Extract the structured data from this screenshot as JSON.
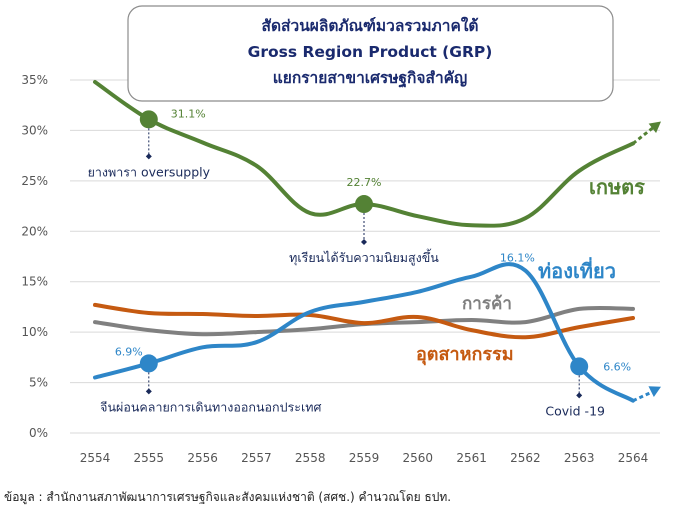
{
  "chart_data": {
    "type": "line",
    "title_lines": [
      "สัดส่วนผลิตภัณฑ์มวลรวมภาคใต้",
      "Gross Region Product (GRP)",
      "แยกรายสาขาเศรษฐกิจสำคัญ"
    ],
    "x": [
      "2554",
      "2555",
      "2556",
      "2557",
      "2558",
      "2559",
      "2560",
      "2561",
      "2562",
      "2563",
      "2564"
    ],
    "y_ticks": [
      "0%",
      "5%",
      "10%",
      "15%",
      "20%",
      "25%",
      "30%",
      "35%"
    ],
    "ylim": [
      0,
      35
    ],
    "grid": "horizontal",
    "series": [
      {
        "name": "เกษตร",
        "color": "#548235",
        "values": [
          34.8,
          31.1,
          28.8,
          26.5,
          21.8,
          22.7,
          21.5,
          20.6,
          21.3,
          26.0,
          28.7
        ],
        "trend": "up"
      },
      {
        "name": "ท่องเที่ยว",
        "color": "#2e86c8",
        "values": [
          5.5,
          6.9,
          8.5,
          9.0,
          12.0,
          13.0,
          14.0,
          15.5,
          16.1,
          6.6,
          3.2
        ],
        "trend": "up"
      },
      {
        "name": "การค้า",
        "color": "#808080",
        "values": [
          11.0,
          10.2,
          9.8,
          10.0,
          10.3,
          10.8,
          11.0,
          11.2,
          11.0,
          12.3,
          12.3
        ]
      },
      {
        "name": "อุตสาหกรรม",
        "color": "#c55a11",
        "values": [
          12.7,
          11.9,
          11.8,
          11.6,
          11.7,
          10.9,
          11.5,
          10.2,
          9.5,
          10.5,
          11.4
        ]
      }
    ],
    "annotations": [
      {
        "text": "ยางพารา oversupply",
        "series": 0,
        "x_index": 1,
        "label": "31.1%"
      },
      {
        "text": "ทุเรียนได้รับความนิยมสูงขึ้น",
        "series": 0,
        "x_index": 5,
        "label": "22.7%"
      },
      {
        "text": "จีนผ่อนคลายการเดินทางออกนอกประเทศ",
        "series": 1,
        "x_index": 1,
        "label": "6.9%"
      },
      {
        "text": "Covid -19",
        "series": 1,
        "x_index": 9,
        "label": "6.6%"
      }
    ],
    "peak_label": {
      "series": 1,
      "x_index": 8,
      "label": "16.1%"
    }
  },
  "source_text": "ข้อมูล : สำนักงานสภาพัฒนาการเศรษฐกิจและสังคมแห่งชาติ (สศช.) คำนวณโดย ธปท."
}
